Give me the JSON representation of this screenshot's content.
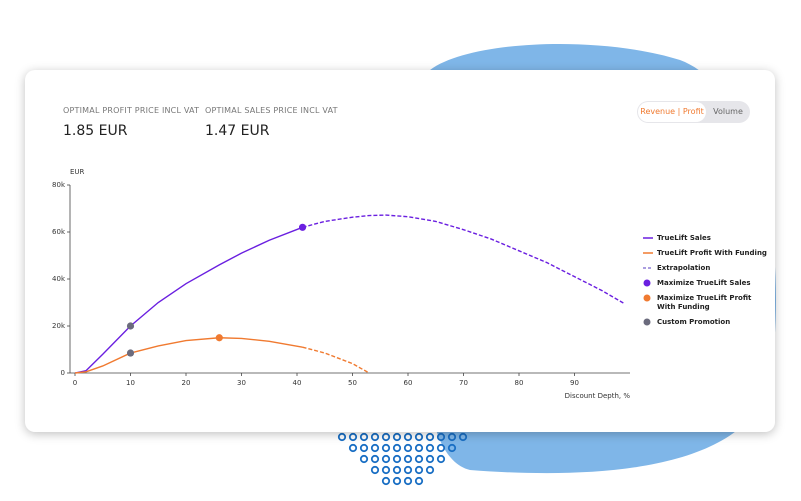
{
  "kpis": [
    {
      "label": "OPTIMAL PROFIT PRICE INCL VAT",
      "value": "1.85 EUR"
    },
    {
      "label": "OPTIMAL SALES PRICE INCL VAT",
      "value": "1.47 EUR"
    }
  ],
  "toggle": {
    "options": [
      "Revenue | Profit",
      "Volume"
    ]
  },
  "chart_data": {
    "type": "line",
    "y_label": "EUR",
    "x_label": "Discount Depth, %",
    "x": [
      0,
      2,
      5,
      10,
      15,
      20,
      26,
      30,
      35,
      41,
      45,
      50,
      53,
      56,
      60,
      65,
      70,
      75,
      80,
      85,
      90,
      95,
      99
    ],
    "xlim": [
      0,
      100
    ],
    "xticks": [
      0,
      10,
      20,
      30,
      40,
      50,
      60,
      70,
      80,
      90
    ],
    "ylim": [
      0,
      80000
    ],
    "yticks": [
      {
        "value": 0,
        "label": "0"
      },
      {
        "value": 20000,
        "label": "20k"
      },
      {
        "value": 40000,
        "label": "40k"
      },
      {
        "value": 60000,
        "label": "60k"
      },
      {
        "value": 80000,
        "label": "80k"
      }
    ],
    "series": [
      {
        "name": "TrueLift Sales",
        "color": "#6a1fe0",
        "values": [
          0,
          1000,
          8000,
          20000,
          30000,
          38000,
          46000,
          51000,
          56500,
          62000,
          null,
          null,
          null,
          null,
          null,
          null,
          null,
          null,
          null,
          null,
          null,
          null,
          null
        ],
        "extrapolated": [
          null,
          null,
          null,
          null,
          null,
          null,
          null,
          null,
          null,
          62000,
          64500,
          66300,
          67000,
          67200,
          66500,
          64500,
          61000,
          57000,
          52000,
          47000,
          41000,
          35000,
          29500
        ]
      },
      {
        "name": "TrueLift Profit With Funding",
        "color": "#f07a30",
        "values": [
          0,
          500,
          3000,
          8500,
          11500,
          13800,
          15000,
          14700,
          13500,
          11000,
          null,
          null,
          null,
          null,
          null,
          null,
          null,
          null,
          null,
          null,
          null,
          null,
          null
        ],
        "extrapolated": [
          null,
          null,
          null,
          null,
          null,
          null,
          null,
          null,
          null,
          11000,
          8500,
          4000,
          0,
          null,
          null,
          null,
          null,
          null,
          null,
          null,
          null,
          null,
          null
        ]
      }
    ],
    "extrapolation": {
      "name": "Extrapolation",
      "color": "#8f7fd6"
    },
    "markers": [
      {
        "name": "Maximize TrueLift Sales",
        "color": "#6a1fe0",
        "points": [
          {
            "x": 41,
            "y": 62000
          }
        ]
      },
      {
        "name": "Maximize TrueLift Profit With Funding",
        "color": "#f07a30",
        "points": [
          {
            "x": 26,
            "y": 15000
          }
        ]
      },
      {
        "name": "Custom Promotion",
        "color": "#6b6b7d",
        "points": [
          {
            "x": 10,
            "y": 20000
          },
          {
            "x": 10,
            "y": 8500
          }
        ]
      }
    ]
  }
}
